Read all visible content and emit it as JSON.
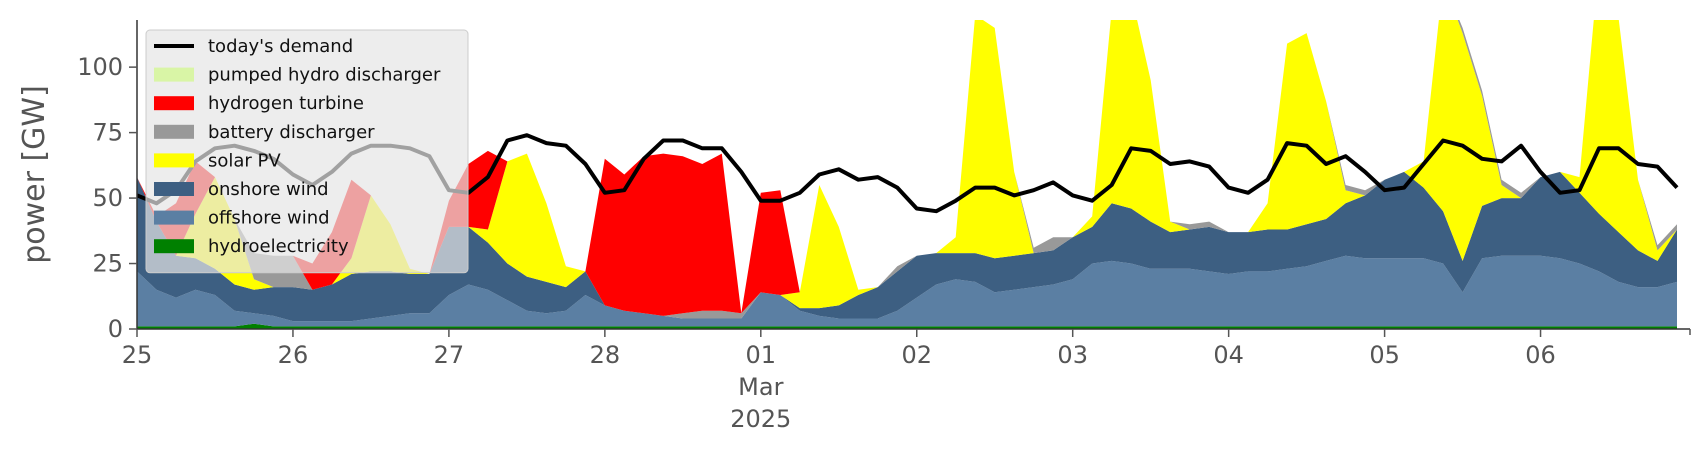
{
  "chart_data": {
    "type": "area",
    "ylabel": "power [GW]",
    "ylim": [
      0,
      118
    ],
    "xlim": [
      "2025-02-25T00:00",
      "2025-03-06T23:00"
    ],
    "yticks": [
      0,
      25,
      50,
      75,
      100
    ],
    "xticks": [
      {
        "x": "2025-02-25T00:00",
        "label": "25"
      },
      {
        "x": "2025-02-26T00:00",
        "label": "26"
      },
      {
        "x": "2025-02-27T00:00",
        "label": "27"
      },
      {
        "x": "2025-02-28T00:00",
        "label": "28"
      },
      {
        "x": "2025-03-01T00:00",
        "label": "01"
      },
      {
        "x": "2025-03-02T00:00",
        "label": "02"
      },
      {
        "x": "2025-03-03T00:00",
        "label": "03"
      },
      {
        "x": "2025-03-04T00:00",
        "label": "04"
      },
      {
        "x": "2025-03-05T00:00",
        "label": "05"
      },
      {
        "x": "2025-03-06T00:00",
        "label": "06"
      }
    ],
    "xlabel_lines": [
      "Mar",
      "2025"
    ],
    "grid": false,
    "legend_position": "top-left",
    "x": [
      "2025-02-25T00:00",
      "2025-02-25T03:00",
      "2025-02-25T06:00",
      "2025-02-25T09:00",
      "2025-02-25T12:00",
      "2025-02-25T15:00",
      "2025-02-25T18:00",
      "2025-02-25T21:00",
      "2025-02-26T00:00",
      "2025-02-26T03:00",
      "2025-02-26T06:00",
      "2025-02-26T09:00",
      "2025-02-26T12:00",
      "2025-02-26T15:00",
      "2025-02-26T18:00",
      "2025-02-26T21:00",
      "2025-02-27T00:00",
      "2025-02-27T03:00",
      "2025-02-27T06:00",
      "2025-02-27T09:00",
      "2025-02-27T12:00",
      "2025-02-27T15:00",
      "2025-02-27T18:00",
      "2025-02-27T21:00",
      "2025-02-28T00:00",
      "2025-02-28T03:00",
      "2025-02-28T06:00",
      "2025-02-28T09:00",
      "2025-02-28T12:00",
      "2025-02-28T15:00",
      "2025-02-28T18:00",
      "2025-02-28T21:00",
      "2025-03-01T00:00",
      "2025-03-01T03:00",
      "2025-03-01T06:00",
      "2025-03-01T09:00",
      "2025-03-01T12:00",
      "2025-03-01T15:00",
      "2025-03-01T18:00",
      "2025-03-01T21:00",
      "2025-03-02T00:00",
      "2025-03-02T03:00",
      "2025-03-02T06:00",
      "2025-03-02T09:00",
      "2025-03-02T12:00",
      "2025-03-02T15:00",
      "2025-03-02T18:00",
      "2025-03-02T21:00",
      "2025-03-03T00:00",
      "2025-03-03T03:00",
      "2025-03-03T06:00",
      "2025-03-03T09:00",
      "2025-03-03T12:00",
      "2025-03-03T15:00",
      "2025-03-03T18:00",
      "2025-03-03T21:00",
      "2025-03-04T00:00",
      "2025-03-04T03:00",
      "2025-03-04T06:00",
      "2025-03-04T09:00",
      "2025-03-04T12:00",
      "2025-03-04T15:00",
      "2025-03-04T18:00",
      "2025-03-04T21:00",
      "2025-03-05T00:00",
      "2025-03-05T03:00",
      "2025-03-05T06:00",
      "2025-03-05T09:00",
      "2025-03-05T12:00",
      "2025-03-05T15:00",
      "2025-03-05T18:00",
      "2025-03-05T21:00",
      "2025-03-06T00:00",
      "2025-03-06T03:00",
      "2025-03-06T06:00",
      "2025-03-06T09:00",
      "2025-03-06T12:00",
      "2025-03-06T15:00",
      "2025-03-06T18:00",
      "2025-03-06T21:00"
    ],
    "series": [
      {
        "name": "hydroelectricity",
        "color": "#008000",
        "type": "area",
        "values": [
          1,
          1,
          1,
          1,
          1,
          1,
          2,
          1,
          1,
          1,
          1,
          1,
          1,
          1,
          1,
          1,
          1,
          1,
          1,
          1,
          1,
          1,
          1,
          1,
          1,
          1,
          1,
          1,
          1,
          1,
          1,
          1,
          1,
          1,
          1,
          1,
          1,
          1,
          1,
          1,
          1,
          1,
          1,
          1,
          1,
          1,
          1,
          1,
          1,
          1,
          1,
          1,
          1,
          1,
          1,
          1,
          1,
          1,
          1,
          1,
          1,
          1,
          1,
          1,
          1,
          1,
          1,
          1,
          1,
          1,
          1,
          1,
          1,
          1,
          1,
          1,
          1,
          1,
          1,
          1
        ]
      },
      {
        "name": "offshore wind",
        "color": "#5b7fa3",
        "type": "area",
        "values": [
          21,
          14,
          11,
          14,
          12,
          6,
          4,
          4,
          2,
          2,
          2,
          2,
          3,
          4,
          5,
          5,
          12,
          16,
          14,
          10,
          6,
          5,
          6,
          12,
          8,
          6,
          5,
          4,
          3,
          3,
          3,
          3,
          13,
          12,
          6,
          4,
          3,
          3,
          3,
          6,
          11,
          16,
          18,
          17,
          13,
          14,
          15,
          16,
          18,
          24,
          25,
          24,
          22,
          22,
          22,
          21,
          20,
          21,
          21,
          22,
          23,
          25,
          27,
          26,
          26,
          26,
          26,
          24,
          13,
          26,
          27,
          27,
          27,
          26,
          24,
          21,
          17,
          15,
          15,
          17
        ]
      },
      {
        "name": "onshore wind",
        "color": "#3d5f82",
        "type": "area",
        "values": [
          36,
          26,
          16,
          12,
          10,
          10,
          9,
          11,
          13,
          12,
          14,
          18,
          18,
          17,
          15,
          15,
          26,
          22,
          18,
          14,
          13,
          12,
          9,
          9,
          0,
          0,
          0,
          0,
          0,
          0,
          0,
          0,
          0,
          0,
          1,
          3,
          5,
          9,
          12,
          15,
          16,
          12,
          10,
          11,
          13,
          13,
          13,
          13,
          16,
          14,
          22,
          21,
          18,
          14,
          15,
          17,
          16,
          15,
          16,
          15,
          16,
          16,
          20,
          24,
          30,
          33,
          27,
          20,
          12,
          20,
          22,
          22,
          30,
          33,
          27,
          22,
          19,
          14,
          10,
          20
        ]
      },
      {
        "name": "solar PV",
        "color": "#ffff00",
        "type": "area",
        "values": [
          0,
          0,
          0,
          17,
          35,
          25,
          4,
          0,
          0,
          0,
          0,
          6,
          29,
          18,
          2,
          0,
          0,
          0,
          5,
          39,
          47,
          30,
          8,
          0,
          0,
          0,
          0,
          0,
          0,
          0,
          0,
          0,
          0,
          0,
          6,
          47,
          30,
          2,
          0,
          0,
          0,
          0,
          6,
          91,
          88,
          32,
          0,
          0,
          0,
          4,
          74,
          82,
          54,
          4,
          0,
          0,
          0,
          0,
          10,
          71,
          73,
          45,
          5,
          0,
          0,
          0,
          10,
          88,
          87,
          42,
          5,
          0,
          0,
          0,
          6,
          96,
          82,
          27,
          4,
          0
        ]
      },
      {
        "name": "battery discharger",
        "color": "#999999",
        "type": "area",
        "values": [
          0,
          0,
          0,
          0,
          0,
          0,
          10,
          12,
          12,
          0,
          0,
          0,
          0,
          0,
          0,
          0,
          0,
          0,
          0,
          0,
          0,
          0,
          0,
          0,
          0,
          0,
          0,
          0,
          2,
          3,
          3,
          2,
          0,
          0,
          0,
          0,
          0,
          0,
          0,
          2,
          0,
          0,
          0,
          0,
          0,
          0,
          2,
          5,
          0,
          0,
          0,
          0,
          0,
          0,
          2,
          2,
          0,
          0,
          0,
          0,
          0,
          0,
          2,
          2,
          0,
          0,
          0,
          0,
          2,
          2,
          2,
          2,
          0,
          0,
          0,
          0,
          0,
          0,
          2,
          2
        ]
      },
      {
        "name": "hydrogen turbine",
        "color": "#ff0000",
        "type": "area",
        "values": [
          0,
          2,
          20,
          20,
          0,
          0,
          0,
          0,
          0,
          10,
          20,
          30,
          0,
          0,
          0,
          0,
          10,
          24,
          30,
          0,
          0,
          0,
          0,
          0,
          56,
          52,
          60,
          62,
          60,
          56,
          60,
          0,
          38,
          40,
          0,
          0,
          0,
          0,
          0,
          0,
          0,
          0,
          0,
          0,
          0,
          0,
          0,
          0,
          0,
          0,
          0,
          0,
          0,
          0,
          0,
          0,
          0,
          0,
          0,
          0,
          0,
          0,
          0,
          0,
          0,
          0,
          0,
          0,
          0,
          0,
          0,
          0,
          0,
          0,
          0,
          0,
          0,
          0,
          0,
          0
        ]
      },
      {
        "name": "pumped hydro discharger",
        "color": "#d9f5a6",
        "type": "area",
        "values": [
          0,
          0,
          0,
          0,
          0,
          0,
          0,
          0,
          0,
          0,
          0,
          0,
          0,
          0,
          0,
          0,
          0,
          0,
          0,
          0,
          0,
          0,
          0,
          0,
          0,
          0,
          0,
          0,
          0,
          0,
          0,
          0,
          0,
          0,
          0,
          0,
          0,
          0,
          0,
          0,
          0,
          0,
          0,
          0,
          0,
          0,
          0,
          0,
          0,
          0,
          0,
          0,
          0,
          0,
          0,
          0,
          0,
          0,
          0,
          0,
          0,
          0,
          0,
          0,
          0,
          0,
          0,
          0,
          0,
          0,
          0,
          0,
          0,
          0,
          0,
          0,
          0,
          0,
          0,
          0
        ]
      },
      {
        "name": "today's demand",
        "color": "#000000",
        "type": "line",
        "values": [
          51,
          48,
          53,
          64,
          69,
          70,
          68,
          65,
          59,
          55,
          60,
          67,
          70,
          70,
          69,
          66,
          53,
          52,
          58,
          72,
          74,
          71,
          70,
          63,
          52,
          53,
          65,
          72,
          72,
          69,
          69,
          60,
          49,
          49,
          52,
          59,
          61,
          57,
          58,
          54,
          46,
          45,
          49,
          54,
          54,
          51,
          53,
          56,
          51,
          49,
          55,
          69,
          68,
          63,
          64,
          62,
          54,
          52,
          57,
          71,
          70,
          63,
          66,
          60,
          53,
          54,
          63,
          72,
          70,
          65,
          64,
          70,
          60,
          52,
          53,
          69,
          69,
          63,
          62,
          54
        ]
      }
    ]
  }
}
